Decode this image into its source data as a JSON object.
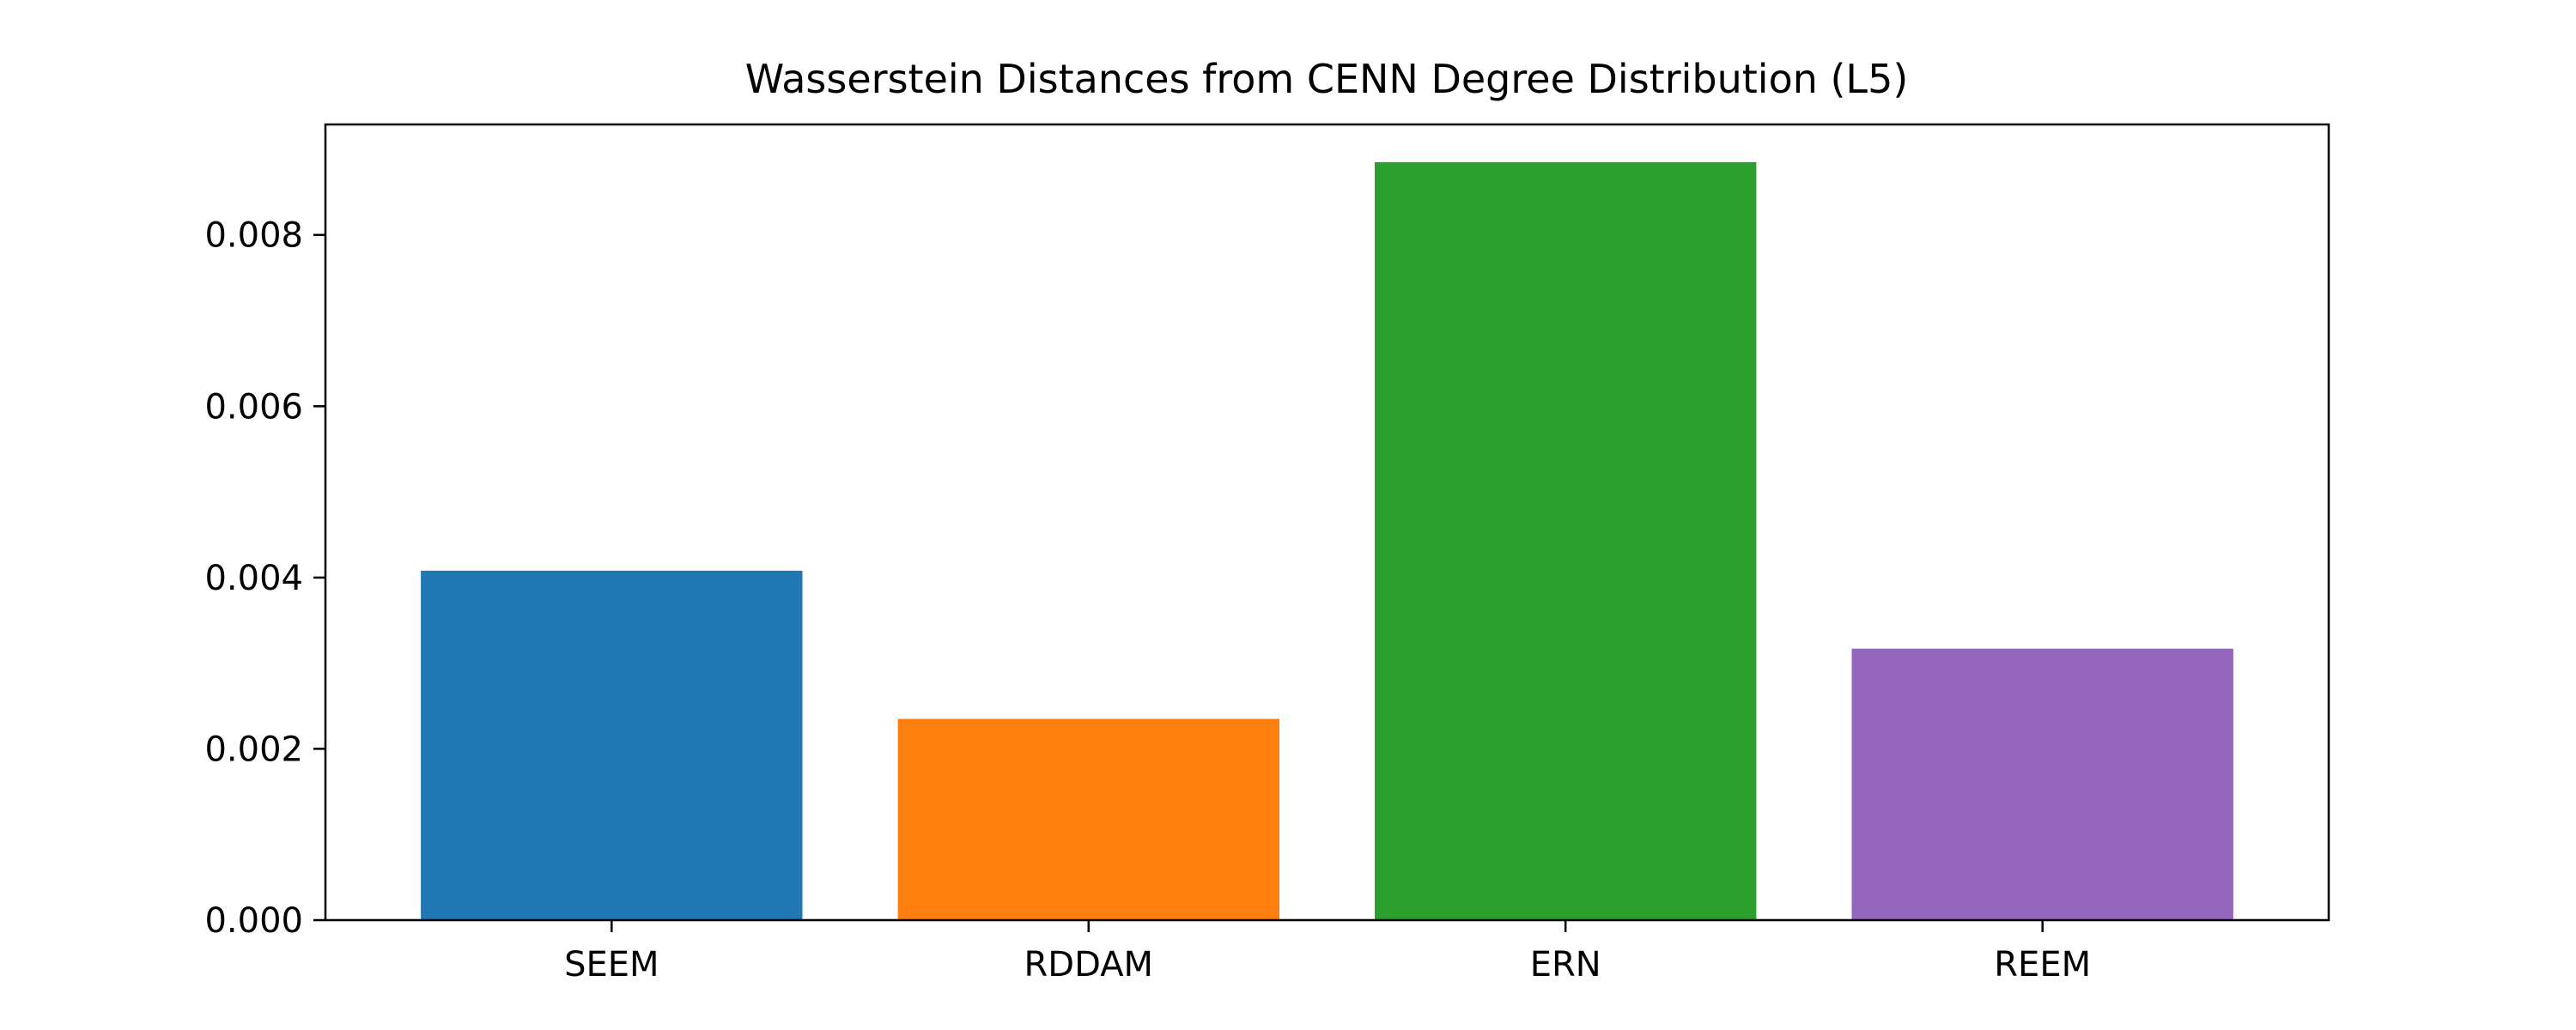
{
  "chart_data": {
    "type": "bar",
    "title": "Wasserstein Distances from CENN Degree Distribution (L5)",
    "xlabel": "",
    "ylabel": "",
    "categories": [
      "SEEM",
      "RDDAM",
      "ERN",
      "REEM"
    ],
    "values": [
      0.00408,
      0.00235,
      0.00885,
      0.00317
    ],
    "colors": [
      "#1f77b4",
      "#ff7f0e",
      "#2ca02c",
      "#9467bd"
    ],
    "ylim": [
      0,
      0.00929
    ],
    "yticks": [
      0,
      0.002,
      0.004,
      0.006,
      0.008
    ],
    "ytick_labels": [
      "0.000",
      "0.002",
      "0.004",
      "0.006",
      "0.008"
    ],
    "grid": false,
    "legend": "none"
  }
}
